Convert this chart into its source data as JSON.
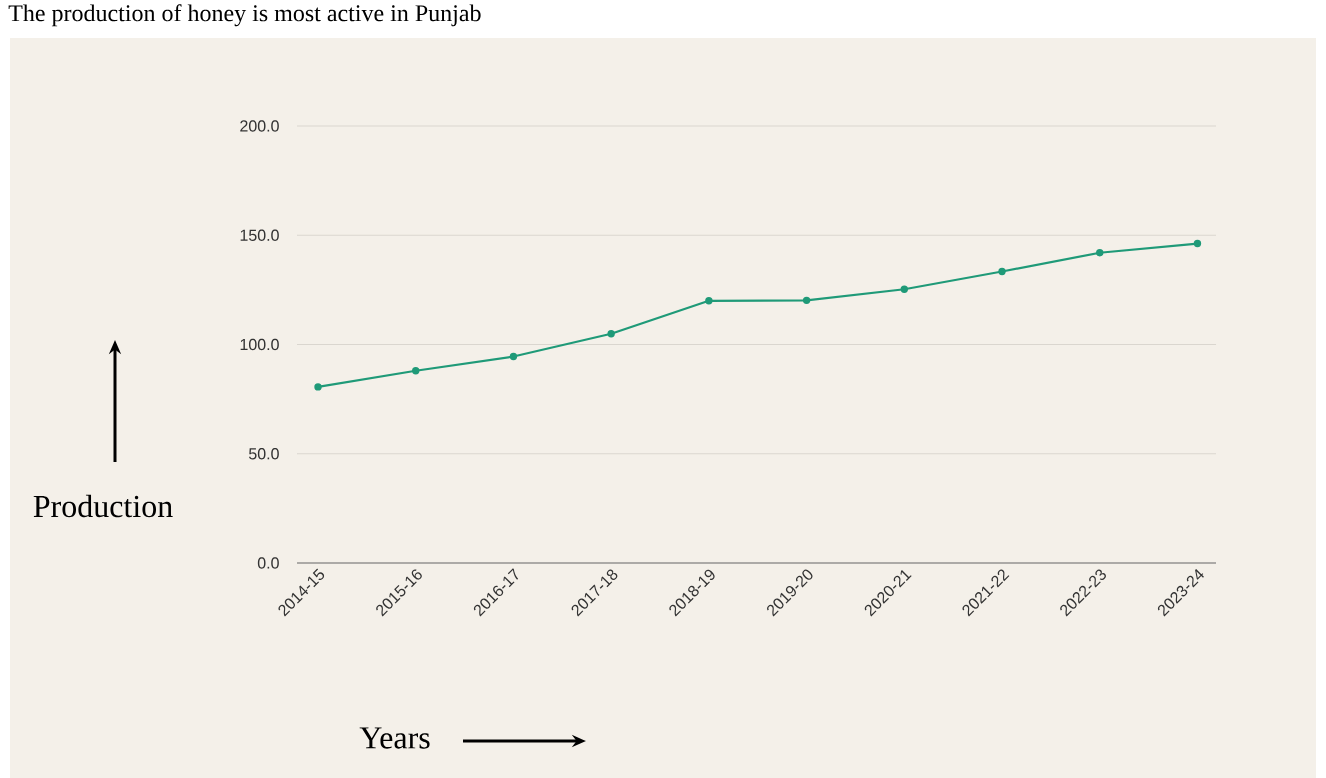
{
  "chart_data": {
    "type": "line",
    "title": "The production of honey is most active in Punjab",
    "xlabel": "Years",
    "ylabel": "Production",
    "categories": [
      "2014-15",
      "2015-16",
      "2016-17",
      "2017-18",
      "2018-19",
      "2019-20",
      "2020-21",
      "2021-22",
      "2022-23",
      "2023-24"
    ],
    "series": [
      {
        "color": "#1f9a78",
        "values": [
          80.6,
          88.0,
          94.5,
          104.9,
          120.0,
          120.2,
          125.3,
          133.4,
          142.0,
          146.2
        ]
      }
    ],
    "ylim": [
      0,
      200
    ],
    "yticks": [
      {
        "value": 0,
        "label": "0.0"
      },
      {
        "value": 50,
        "label": "50.0"
      },
      {
        "value": 100,
        "label": "100.0"
      },
      {
        "value": 150,
        "label": "150.0"
      },
      {
        "value": 200,
        "label": "200.0"
      }
    ],
    "grid": "y",
    "marker": "circle",
    "line_style": "solid"
  }
}
